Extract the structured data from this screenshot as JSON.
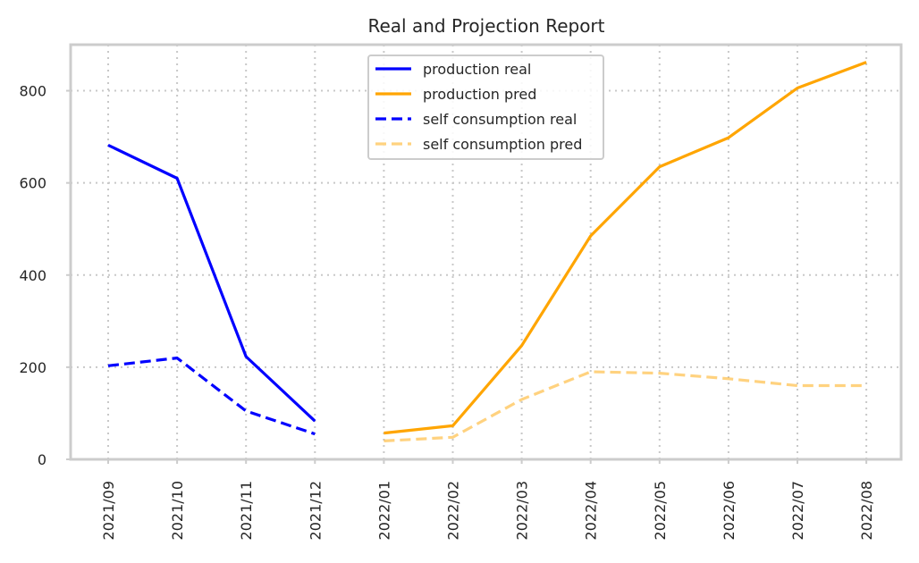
{
  "chart_data": {
    "type": "line",
    "title": "Real and Projection Report",
    "xlabel": "",
    "ylabel": "",
    "ylim": [
      0,
      900
    ],
    "yticks": [
      0,
      200,
      400,
      600,
      800
    ],
    "grid": true,
    "legend_position": "top-center",
    "x": [
      "2021/09",
      "2021/10",
      "2021/11",
      "2021/12",
      "2022/01",
      "2022/02",
      "2022/03",
      "2022/04",
      "2022/05",
      "2022/06",
      "2022/07",
      "2022/08"
    ],
    "series": [
      {
        "name": "production real",
        "color": "#0000ff",
        "dash": "solid",
        "opacity": 1,
        "values": [
          682,
          610,
          223,
          83,
          null,
          null,
          null,
          null,
          null,
          null,
          null,
          null
        ]
      },
      {
        "name": "production pred",
        "color": "#ffa500",
        "dash": "solid",
        "opacity": 1,
        "values": [
          null,
          null,
          null,
          null,
          57,
          73,
          247,
          485,
          635,
          698,
          806,
          862
        ]
      },
      {
        "name": "self consumption real",
        "color": "#0000ff",
        "dash": "dashed",
        "opacity": 1,
        "values": [
          203,
          220,
          105,
          55,
          null,
          null,
          null,
          null,
          null,
          null,
          null,
          null
        ]
      },
      {
        "name": "self consumption pred",
        "color": "#ffa500",
        "dash": "dashed",
        "opacity": 0.5,
        "values": [
          null,
          null,
          null,
          null,
          40,
          48,
          130,
          190,
          187,
          175,
          160,
          160
        ]
      }
    ]
  }
}
